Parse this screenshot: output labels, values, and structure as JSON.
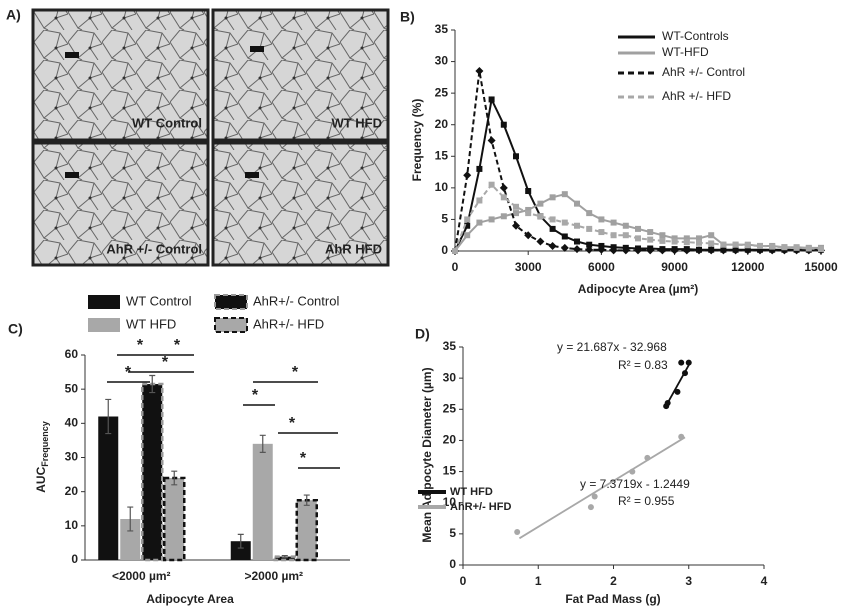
{
  "panel_a": {
    "label": "A)",
    "images": [
      "WT Control",
      "WT HFD",
      "AhR +/- Control",
      "AhR HFD"
    ]
  },
  "chart_data": [
    {
      "type": "line",
      "label": "B)",
      "x_label": "Adipocyte Area (µm²)",
      "y_label": "Frequency (%)",
      "x": [
        0,
        500,
        1000,
        1500,
        2000,
        2500,
        3000,
        3500,
        4000,
        4500,
        5000,
        5500,
        6000,
        6500,
        7000,
        7500,
        8000,
        8500,
        9000,
        9500,
        10000,
        10500,
        11000,
        11500,
        12000,
        12500,
        13000,
        13500,
        14000,
        14500,
        15000
      ],
      "xlim": [
        0,
        15000
      ],
      "xticks": [
        0,
        3000,
        6000,
        9000,
        12000,
        15000
      ],
      "ylim": [
        0,
        35
      ],
      "yticks": [
        0,
        5,
        10,
        15,
        20,
        25,
        30,
        35
      ],
      "series": [
        {
          "name": "WT-Controls",
          "color": "#111111",
          "dash": false,
          "marker": "square",
          "values": [
            0,
            4,
            13,
            24,
            20,
            15,
            9.5,
            5.5,
            3.5,
            2.3,
            1.5,
            1,
            0.8,
            0.6,
            0.5,
            0.4,
            0.4,
            0.3,
            0.3,
            0.3,
            0.2,
            0.2,
            0.2,
            0.2,
            0.2,
            0.2,
            0.2,
            0.2,
            0.2,
            0.2,
            0.2
          ]
        },
        {
          "name": "WT-HFD",
          "color": "#a0a0a0",
          "dash": false,
          "marker": "square",
          "values": [
            0,
            2.5,
            4.5,
            5,
            5.5,
            6,
            6.5,
            7.5,
            8.5,
            9,
            7.5,
            6,
            5,
            4.5,
            4,
            3.5,
            3,
            2.5,
            2,
            2,
            2,
            2.5,
            1,
            1,
            1,
            0.8,
            0.8,
            0.6,
            0.6,
            0.5,
            0.5
          ]
        },
        {
          "name": "AhR +/- Control",
          "color": "#111111",
          "dash": true,
          "marker": "diamond",
          "values": [
            0,
            12,
            28.5,
            17.5,
            10,
            4,
            2.5,
            1.5,
            0.8,
            0.5,
            0.3,
            0.2,
            0.2,
            0.1,
            0.1,
            0.1,
            0.1,
            0.1,
            0.1,
            0.1,
            0.1,
            0.1,
            0.1,
            0.1,
            0.1,
            0.1,
            0.1,
            0.1,
            0.1,
            0.1,
            0.1
          ]
        },
        {
          "name": "AhR +/- HFD",
          "color": "#a8a8a8",
          "dash": true,
          "marker": "square",
          "values": [
            0,
            5,
            8,
            10.5,
            8.5,
            7,
            6,
            5.5,
            5,
            4.5,
            4,
            3.5,
            3,
            2.5,
            2.5,
            2,
            1.8,
            1.6,
            1.5,
            1.4,
            1.3,
            1.2,
            1,
            1,
            0.9,
            0.8,
            0.7,
            0.6,
            0.5,
            0.4,
            0.3
          ]
        }
      ]
    },
    {
      "type": "bar",
      "label": "C)",
      "x_label": "Adipocyte Area",
      "y_label": "AUC",
      "y_label_sub": "Frequency",
      "categories": [
        "<2000 µm²",
        ">2000 µm²"
      ],
      "ylim": [
        0,
        60
      ],
      "yticks": [
        0,
        10,
        20,
        30,
        40,
        50,
        60
      ],
      "series": [
        {
          "name": "WT Control",
          "color": "#111111",
          "border": "solid",
          "values": [
            42,
            5.5
          ],
          "errors": [
            5,
            2
          ]
        },
        {
          "name": "WT HFD",
          "color": "#a8a8a8",
          "border": "solid",
          "values": [
            12,
            34
          ],
          "errors": [
            3.5,
            2.5
          ]
        },
        {
          "name": "AhR+/- Control",
          "color": "#111111",
          "border": "dashed",
          "values": [
            51.5,
            1
          ],
          "errors": [
            2.5,
            0.3
          ]
        },
        {
          "name": "AhR+/- HFD",
          "color": "#a8a8a8",
          "border": "dashed",
          "values": [
            24,
            17.5
          ],
          "errors": [
            2,
            1.5
          ]
        }
      ],
      "significance": [
        "*",
        "*",
        "*",
        "*",
        "*",
        "*",
        "*",
        "*"
      ]
    },
    {
      "type": "scatter",
      "label": "D)",
      "x_label": "Fat Pad Mass (g)",
      "y_label": "Mean Adipocyte Diameter (µm)",
      "xlim": [
        0,
        4
      ],
      "xticks": [
        0,
        1,
        2,
        3,
        4
      ],
      "ylim": [
        0,
        35
      ],
      "yticks": [
        0,
        5,
        10,
        15,
        20,
        25,
        30,
        35
      ],
      "series": [
        {
          "name": "WT HFD",
          "color": "#111111",
          "x": [
            2.7,
            2.72,
            2.85,
            2.9,
            2.95,
            3.0
          ],
          "values": [
            25.5,
            26,
            27.8,
            32.5,
            30.8,
            32.5
          ],
          "fit": {
            "slope": 21.687,
            "intercept": -32.968,
            "x_range": [
              2.68,
              3.02
            ]
          },
          "equation": "y = 21.687x - 32.968",
          "r2": "R² = 0.83"
        },
        {
          "name": "AhR+/- HFD",
          "color": "#a8a8a8",
          "x": [
            0.72,
            1.7,
            1.75,
            2.25,
            2.45,
            2.9
          ],
          "values": [
            5.3,
            9.3,
            11,
            15,
            17.2,
            20.6
          ],
          "fit": {
            "slope": 7.3719,
            "intercept": -1.2449,
            "x_range": [
              0.75,
              2.95
            ]
          },
          "equation": "y = 7.3719x - 1.2449",
          "r2": "R² = 0.955"
        }
      ]
    }
  ]
}
